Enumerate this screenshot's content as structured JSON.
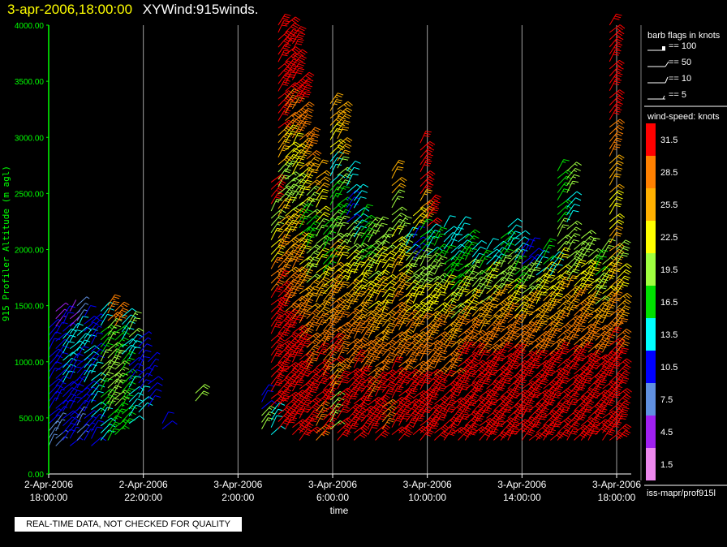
{
  "header": {
    "date": "3-apr-2006,18:00:00",
    "title": "XYWind:915winds."
  },
  "notice": "REAL-TIME DATA, NOT CHECKED FOR QUALITY",
  "footer": "iss-mapr/prof915l",
  "legend": {
    "barb_title": "barb flags in knots",
    "barb_items": [
      "== 100",
      "== 50",
      "== 10",
      "== 5"
    ],
    "speed_title": "wind-speed: knots",
    "speed_bins": [
      {
        "label": "31.5",
        "color": "#ff0000"
      },
      {
        "label": "28.5",
        "color": "#ff8000"
      },
      {
        "label": "25.5",
        "color": "#ffb000"
      },
      {
        "label": "22.5",
        "color": "#ffff00"
      },
      {
        "label": "19.5",
        "color": "#a0ff40"
      },
      {
        "label": "16.5",
        "color": "#00e000"
      },
      {
        "label": "13.5",
        "color": "#00ffff"
      },
      {
        "label": "10.5",
        "color": "#0000ff"
      },
      {
        "label": "7.5",
        "color": "#6090e0"
      },
      {
        "label": "4.5",
        "color": "#a020f0"
      },
      {
        "label": "1.5",
        "color": "#ee88ee"
      }
    ]
  },
  "chart_data": {
    "type": "scatter",
    "xlabel": "time",
    "ylabel": "915 Profiler Altitude (m agl)",
    "ylim": [
      0,
      4000
    ],
    "xlim_hours": [
      0,
      24
    ],
    "y_ticks": [
      "0.00",
      "500.00",
      "1000.00",
      "1500.00",
      "2000.00",
      "2500.00",
      "3000.00",
      "3500.00",
      "4000.00"
    ],
    "x_ticks": [
      {
        "date": "2-Apr-2006",
        "time": "18:00:00"
      },
      {
        "date": "2-Apr-2006",
        "time": "22:00:00"
      },
      {
        "date": "3-Apr-2006",
        "time": "2:00:00"
      },
      {
        "date": "3-Apr-2006",
        "time": "6:00:00"
      },
      {
        "date": "3-Apr-2006",
        "time": "10:00:00"
      },
      {
        "date": "3-Apr-2006",
        "time": "14:00:00"
      },
      {
        "date": "3-Apr-2006",
        "time": "18:00:00"
      }
    ],
    "grid": true,
    "colors": {
      "axis": "#00ff00",
      "grid": "#a0a0a0"
    },
    "columns": [
      {
        "t": 0.0,
        "bottom": 250,
        "top": 1300,
        "speeds": [
          8,
          9,
          10,
          10,
          11,
          9
        ]
      },
      {
        "t": 0.3,
        "bottom": 250,
        "top": 1450,
        "speeds": [
          7,
          9,
          10,
          11,
          5
        ]
      },
      {
        "t": 0.6,
        "bottom": 300,
        "top": 1400,
        "speeds": [
          10,
          11,
          13,
          14,
          10
        ]
      },
      {
        "t": 0.9,
        "bottom": 250,
        "top": 1450,
        "speeds": [
          9,
          10,
          11,
          12,
          4
        ]
      },
      {
        "t": 1.2,
        "bottom": 300,
        "top": 1500,
        "speeds": [
          8,
          9,
          10,
          12,
          8
        ]
      },
      {
        "t": 1.5,
        "bottom": 300,
        "top": 1400,
        "speeds": [
          9,
          11,
          12,
          13,
          10
        ]
      },
      {
        "t": 1.8,
        "bottom": 250,
        "top": 1350,
        "speeds": [
          10,
          12,
          13,
          11,
          9
        ]
      },
      {
        "t": 2.2,
        "bottom": 300,
        "top": 1450,
        "speeds": [
          14,
          17,
          18,
          16,
          12
        ]
      },
      {
        "t": 2.5,
        "bottom": 300,
        "top": 1500,
        "speeds": [
          17,
          19,
          20,
          18,
          29
        ]
      },
      {
        "t": 2.8,
        "bottom": 350,
        "top": 1450,
        "speeds": [
          16,
          18,
          19,
          17,
          28
        ]
      },
      {
        "t": 3.1,
        "bottom": 400,
        "top": 1400,
        "speeds": [
          15,
          17,
          16,
          14,
          13
        ]
      },
      {
        "t": 3.4,
        "bottom": 450,
        "top": 1350,
        "speeds": [
          13,
          12,
          11,
          14,
          19
        ]
      },
      {
        "t": 3.8,
        "bottom": 550,
        "top": 1200,
        "speeds": [
          12,
          11,
          10,
          9
        ]
      },
      {
        "t": 4.2,
        "bottom": 600,
        "top": 1000,
        "speeds": [
          10,
          9
        ]
      },
      {
        "t": 4.8,
        "bottom": 400,
        "top": 450,
        "speeds": [
          11
        ]
      },
      {
        "t": 6.2,
        "bottom": 650,
        "top": 720,
        "speeds": [
          20
        ]
      },
      {
        "t": 9.0,
        "bottom": 400,
        "top": 700,
        "speeds": [
          18,
          10
        ]
      },
      {
        "t": 9.4,
        "bottom": 350,
        "top": 2600,
        "speeds": [
          12,
          30,
          32,
          31,
          30,
          27,
          22,
          18,
          33
        ]
      },
      {
        "t": 9.7,
        "bottom": 400,
        "top": 4000,
        "speeds": [
          32,
          33,
          31,
          30,
          28,
          24,
          20,
          25,
          30,
          32,
          33
        ]
      },
      {
        "t": 10.0,
        "bottom": 400,
        "top": 4000,
        "speeds": [
          33,
          32,
          30,
          29,
          26,
          22,
          18,
          23,
          29,
          32,
          33
        ]
      },
      {
        "t": 10.3,
        "bottom": 350,
        "top": 3900,
        "speeds": [
          31,
          32,
          31,
          29,
          27,
          24,
          20,
          22,
          28,
          31,
          32
        ]
      },
      {
        "t": 10.6,
        "bottom": 300,
        "top": 3500,
        "speeds": [
          32,
          31,
          30,
          28,
          26,
          22,
          17,
          21,
          26,
          29,
          31
        ]
      },
      {
        "t": 10.9,
        "bottom": 350,
        "top": 3000,
        "speeds": [
          31,
          30,
          29,
          27,
          24,
          20,
          16,
          19,
          24,
          28
        ]
      },
      {
        "t": 11.3,
        "bottom": 300,
        "top": 2700,
        "speeds": [
          29,
          30,
          31,
          28,
          26,
          22,
          18,
          21,
          24
        ]
      },
      {
        "t": 11.6,
        "bottom": 350,
        "top": 2200,
        "speeds": [
          30,
          31,
          29,
          27,
          25,
          22,
          17,
          15
        ]
      },
      {
        "t": 11.9,
        "bottom": 400,
        "top": 3300,
        "speeds": [
          18,
          24,
          30,
          29,
          27,
          24,
          20,
          16,
          13,
          22,
          25
        ]
      },
      {
        "t": 12.2,
        "bottom": 300,
        "top": 3250,
        "speeds": [
          31,
          30,
          28,
          27,
          25,
          22,
          19,
          17,
          20,
          24,
          26
        ]
      },
      {
        "t": 12.6,
        "bottom": 350,
        "top": 2700,
        "speeds": [
          31,
          30,
          29,
          27,
          25,
          22,
          18,
          11,
          13
        ]
      },
      {
        "t": 12.9,
        "bottom": 300,
        "top": 2500,
        "speeds": [
          32,
          31,
          30,
          28,
          26,
          23,
          19,
          14,
          13
        ]
      },
      {
        "t": 13.2,
        "bottom": 400,
        "top": 2300,
        "speeds": [
          31,
          30,
          28,
          27,
          24,
          22,
          17,
          16
        ]
      },
      {
        "t": 13.5,
        "bottom": 350,
        "top": 2200,
        "speeds": [
          30,
          29,
          27,
          25,
          23,
          20,
          19
        ]
      },
      {
        "t": 13.8,
        "bottom": 300,
        "top": 2200,
        "speeds": [
          31,
          30,
          28,
          26,
          24,
          21,
          18
        ]
      },
      {
        "t": 14.1,
        "bottom": 400,
        "top": 2100,
        "speeds": [
          29,
          30,
          28,
          25,
          23,
          21,
          18
        ]
      },
      {
        "t": 14.5,
        "bottom": 350,
        "top": 2700,
        "speeds": [
          30,
          31,
          29,
          27,
          24,
          22,
          19,
          24
        ]
      },
      {
        "t": 14.8,
        "bottom": 300,
        "top": 2200,
        "speeds": [
          31,
          30,
          29,
          26,
          24,
          21,
          18
        ]
      },
      {
        "t": 15.1,
        "bottom": 400,
        "top": 2100,
        "speeds": [
          30,
          31,
          29,
          27,
          23,
          20,
          12
        ]
      },
      {
        "t": 15.4,
        "bottom": 350,
        "top": 2300,
        "speeds": [
          31,
          30,
          28,
          26,
          22,
          19,
          11,
          22
        ]
      },
      {
        "t": 15.7,
        "bottom": 300,
        "top": 2950,
        "speeds": [
          32,
          31,
          29,
          27,
          23,
          20,
          17,
          25,
          31,
          31
        ]
      },
      {
        "t": 16.0,
        "bottom": 350,
        "top": 2400,
        "speeds": [
          31,
          30,
          28,
          26,
          22,
          18,
          14,
          32
        ]
      },
      {
        "t": 16.3,
        "bottom": 300,
        "top": 2100,
        "speeds": [
          32,
          31,
          29,
          27,
          23,
          19,
          15
        ]
      },
      {
        "t": 16.7,
        "bottom": 300,
        "top": 2200,
        "speeds": [
          31,
          30,
          28,
          25,
          21,
          16,
          12
        ]
      },
      {
        "t": 17.0,
        "bottom": 350,
        "top": 2100,
        "speeds": [
          32,
          31,
          29,
          26,
          20,
          15,
          13
        ]
      },
      {
        "t": 17.3,
        "bottom": 300,
        "top": 2200,
        "speeds": [
          31,
          32,
          30,
          27,
          22,
          17,
          14
        ]
      },
      {
        "t": 17.6,
        "bottom": 300,
        "top": 2100,
        "speeds": [
          32,
          31,
          30,
          28,
          23,
          18,
          16
        ]
      },
      {
        "t": 17.9,
        "bottom": 350,
        "top": 2000,
        "speeds": [
          31,
          32,
          31,
          29,
          24,
          19,
          13
        ]
      },
      {
        "t": 18.2,
        "bottom": 300,
        "top": 1900,
        "speeds": [
          32,
          31,
          30,
          28,
          25,
          20,
          15
        ]
      },
      {
        "t": 18.5,
        "bottom": 300,
        "top": 2000,
        "speeds": [
          31,
          32,
          30,
          27,
          24,
          21,
          12
        ]
      },
      {
        "t": 18.8,
        "bottom": 300,
        "top": 2000,
        "speeds": [
          32,
          31,
          31,
          29,
          26,
          19,
          13
        ]
      },
      {
        "t": 19.1,
        "bottom": 300,
        "top": 2100,
        "speeds": [
          31,
          32,
          30,
          28,
          25,
          20,
          17
        ]
      },
      {
        "t": 19.4,
        "bottom": 300,
        "top": 2200,
        "speeds": [
          32,
          31,
          30,
          27,
          23,
          18,
          13
        ]
      },
      {
        "t": 19.7,
        "bottom": 350,
        "top": 2100,
        "speeds": [
          31,
          32,
          31,
          28,
          22,
          16,
          12
        ]
      },
      {
        "t": 20.0,
        "bottom": 300,
        "top": 2000,
        "speeds": [
          32,
          31,
          30,
          28,
          24,
          18,
          10
        ]
      },
      {
        "t": 20.3,
        "bottom": 300,
        "top": 2000,
        "speeds": [
          31,
          32,
          30,
          27,
          24,
          20,
          11
        ]
      },
      {
        "t": 20.6,
        "bottom": 300,
        "top": 1900,
        "speeds": [
          32,
          31,
          30,
          29,
          25,
          22,
          14
        ]
      },
      {
        "t": 20.9,
        "bottom": 300,
        "top": 2000,
        "speeds": [
          31,
          32,
          31,
          28,
          26,
          23,
          16
        ]
      },
      {
        "t": 21.2,
        "bottom": 300,
        "top": 1900,
        "speeds": [
          32,
          31,
          30,
          28,
          25,
          21,
          12
        ]
      },
      {
        "t": 21.5,
        "bottom": 300,
        "top": 2700,
        "speeds": [
          31,
          32,
          30,
          29,
          26,
          22,
          19,
          15,
          17
        ]
      },
      {
        "t": 21.9,
        "bottom": 300,
        "top": 2700,
        "speeds": [
          32,
          31,
          30,
          28,
          25,
          20,
          18,
          14,
          18
        ]
      },
      {
        "t": 22.2,
        "bottom": 300,
        "top": 2000,
        "speeds": [
          31,
          32,
          31,
          29,
          27,
          23,
          18
        ]
      },
      {
        "t": 22.5,
        "bottom": 300,
        "top": 2100,
        "speeds": [
          32,
          31,
          30,
          28,
          26,
          22,
          19
        ]
      },
      {
        "t": 22.8,
        "bottom": 300,
        "top": 2000,
        "speeds": [
          31,
          32,
          31,
          29,
          26,
          21,
          18
        ]
      },
      {
        "t": 23.1,
        "bottom": 350,
        "top": 1900,
        "speeds": [
          32,
          31,
          30,
          28,
          24,
          20,
          16
        ]
      },
      {
        "t": 23.4,
        "bottom": 300,
        "top": 2000,
        "speeds": [
          31,
          32,
          31,
          29,
          25,
          21,
          19
        ]
      },
      {
        "t": 23.7,
        "bottom": 300,
        "top": 4000,
        "speeds": [
          32,
          31,
          30,
          28,
          26,
          24,
          22,
          24,
          27,
          30,
          32,
          33
        ]
      },
      {
        "t": 24.0,
        "bottom": 300,
        "top": 2000,
        "speeds": [
          31,
          32,
          30,
          28,
          25,
          22,
          20
        ]
      }
    ]
  }
}
